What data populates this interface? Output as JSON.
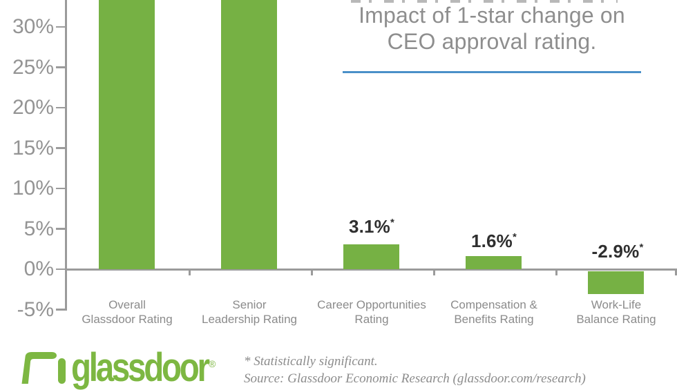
{
  "title": {
    "line1": "Impact of 1-star change on",
    "line2": "CEO approval rating."
  },
  "bars": [
    {
      "category_line1": "Overall",
      "category_line2": "Glassdoor Rating",
      "value": null,
      "label": "",
      "star": ""
    },
    {
      "category_line1": "Senior",
      "category_line2": "Leadership Rating",
      "value": null,
      "label": "",
      "star": ""
    },
    {
      "category_line1": "Career Opportunities",
      "category_line2": "Rating",
      "value": 3.1,
      "label": "3.1%",
      "star": "*"
    },
    {
      "category_line1": "Compensation &",
      "category_line2": "Benefits Rating",
      "value": 1.6,
      "label": "1.6%",
      "star": "*"
    },
    {
      "category_line1": "Work-Life",
      "category_line2": "Balance Rating",
      "value": -2.9,
      "label": "-2.9%",
      "star": "*"
    }
  ],
  "footer": {
    "logo_text": "glassdoor",
    "registered": "®",
    "note_significant": "* Statistically significant.",
    "note_source": "Source: Glassdoor Economic Research (glassdoor.com/research)"
  },
  "colors": {
    "bar_green": "#76B144",
    "logo_green": "#7DB742",
    "axis_gray": "#9B9B9B",
    "tick_label_gray": "#949494",
    "category_label_gray": "#8B8B8B",
    "title_gray": "#8E8E8E",
    "value_label_dark": "#2F2F2F",
    "divider_blue": "#4A90C8",
    "footnote_gray": "#8C8C8C"
  },
  "chart_data": {
    "type": "bar",
    "title": "Impact of 1-star change on CEO approval rating.",
    "categories": [
      "Overall Glassdoor Rating",
      "Senior Leadership Rating",
      "Career Opportunities Rating",
      "Compensation & Benefits Rating",
      "Work-Life Balance Rating"
    ],
    "values": [
      null,
      null,
      3.1,
      1.6,
      -2.9
    ],
    "value_labels": [
      "",
      "",
      "3.1%*",
      "1.6%*",
      "-2.9%*"
    ],
    "y_tick_values": [
      30,
      25,
      20,
      15,
      10,
      5,
      0,
      -5
    ],
    "y_tick_labels": [
      "30%",
      "25%",
      "20%",
      "15%",
      "10%",
      "5%",
      "0%",
      "-5%"
    ],
    "ylim_visible": [
      -5,
      33.3
    ],
    "grid": false,
    "legend": null,
    "bar_color": "#76B144",
    "clipped_note": "The first two bars extend beyond the top edge of the image; their values and labels are not visible (greater than ~33%).",
    "footnotes": [
      "* Statistically significant.",
      "Source: Glassdoor Economic Research (glassdoor.com/research)"
    ]
  }
}
